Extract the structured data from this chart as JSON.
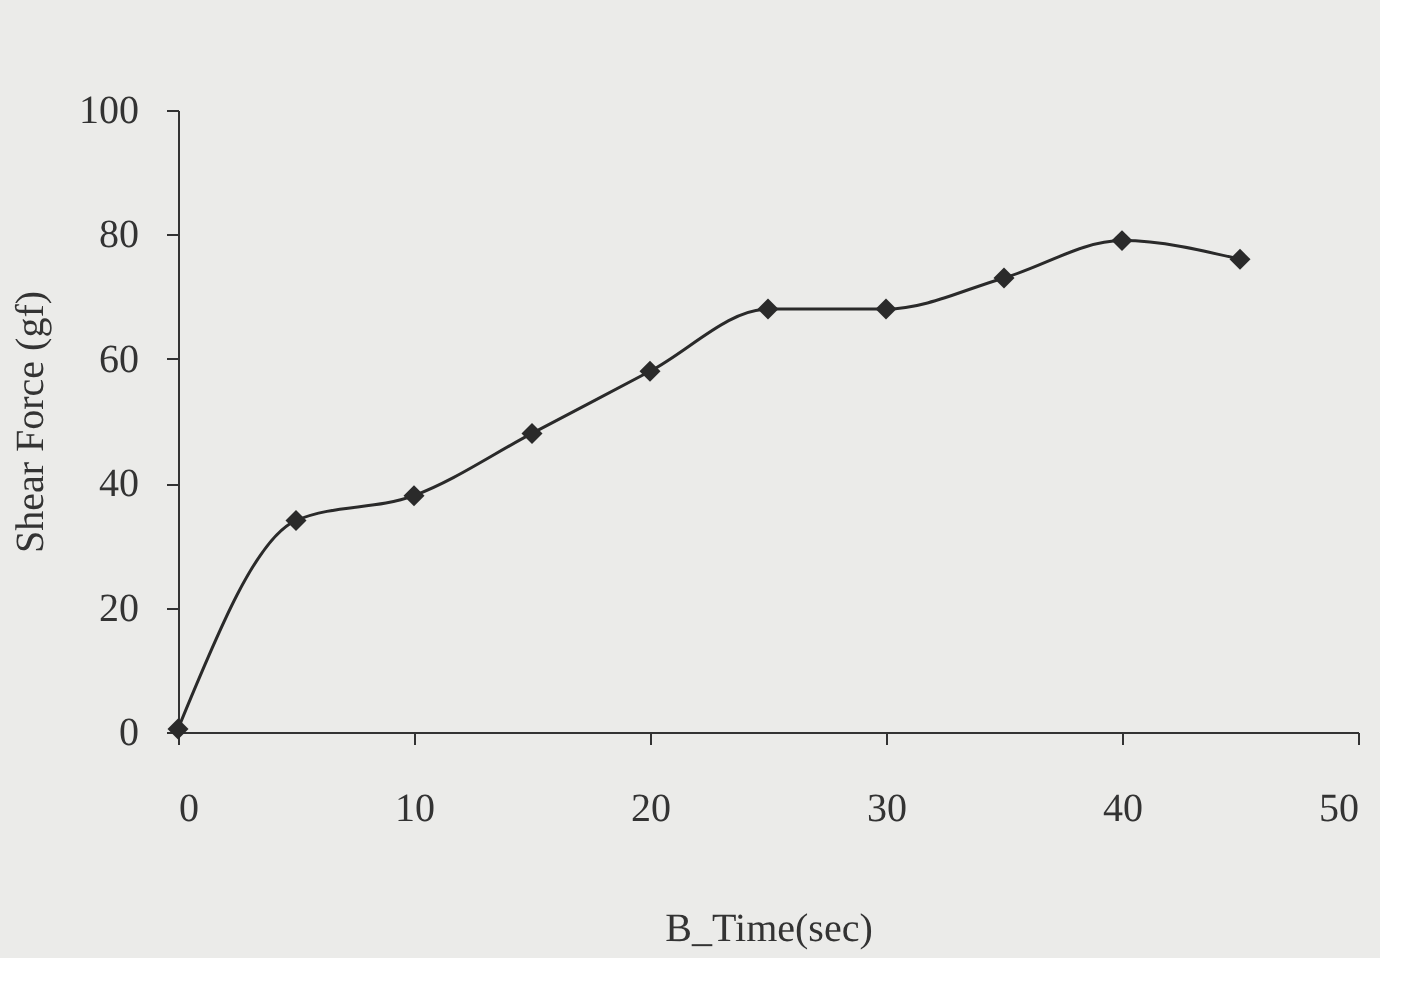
{
  "chart_data": {
    "type": "line",
    "xlabel": "B_Time(sec)",
    "ylabel": "Shear Force (gf)",
    "x": [
      0,
      5,
      10,
      15,
      20,
      25,
      30,
      35,
      40,
      45
    ],
    "series": [
      {
        "color": "#2a2a2a",
        "values": [
          0.5,
          34,
          38,
          48,
          58,
          68,
          68,
          73,
          79,
          76
        ]
      }
    ],
    "xlim": [
      0,
      50
    ],
    "xticks": [
      0,
      10,
      20,
      30,
      40,
      50
    ],
    "ylim": [
      0,
      100
    ],
    "yticks": [
      0,
      20,
      40,
      60,
      80,
      100
    ],
    "grid": false,
    "legend": false,
    "marker": "diamond",
    "line_style": "solid"
  }
}
